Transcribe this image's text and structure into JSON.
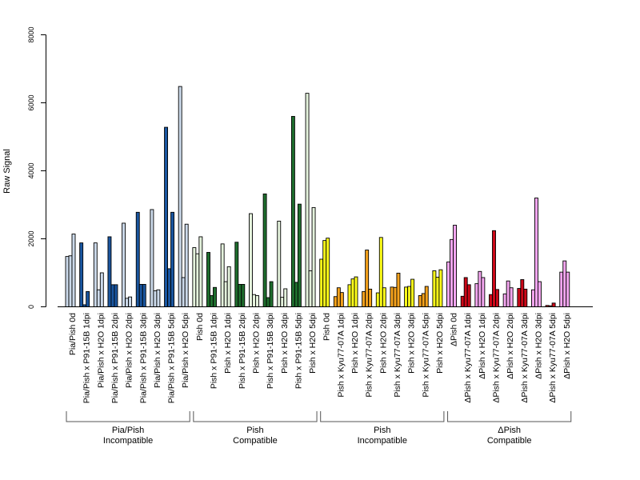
{
  "chart_data": {
    "type": "bar",
    "ylabel": "Raw Signal",
    "ylim": [
      0,
      8000
    ],
    "yticks": [
      "0",
      "2000",
      "4000",
      "6000",
      "8000"
    ],
    "grid": false,
    "legend": "none",
    "bars_per_condition": 4,
    "categories": [
      "Pia/Pish 0d",
      "Pia/Pish x P91-15B 1dpi",
      "Pia/Pish x H2O 1dpi",
      "Pia/Pish x P91-15B 2dpi",
      "Pia/Pish x H2O 2dpi",
      "Pia/Pish x P91-15B 3dpi",
      "Pia/Pish x H2O 3dpi",
      "Pia/Pish x P91-15B 5dpi",
      "Pia/Pish x H2O 5dpi",
      "Pish 0d",
      "Pish x P91-15B 1dpi",
      "Pish x H2O 1dpi",
      "Pish x P91-15B 2dpi",
      "Pish x H2O 2dpi",
      "Pish x P91-15B 3dpi",
      "Pish x H2O 3dpi",
      "Pish x P91-15B 5dpi",
      "Pish x H2O 5dpi",
      "Pish 0d",
      "Pish x Kyu77-07A 1dpi",
      "Pish x H2O 1dpi",
      "Pish x Kyu77-07A 2dpi",
      "Pish x H2O 2dpi",
      "Pish x Kyu77-07A 3dpi",
      "Pish x H2O 3dpi",
      "Pish x Kyu77-07A 5dpi",
      "Pish x H2O 5dpi",
      "ΔPish 0d",
      "ΔPish x Kyu77-07A 1dpi",
      "ΔPish x H2O 1dpi",
      "ΔPish x Kyu77-07A 2dpi",
      "ΔPish x H2O 2dpi",
      "ΔPish x Kyu77-07A 3dpi",
      "ΔPish x H2O 3dpi",
      "ΔPish x Kyu77-07A 5dpi",
      "ΔPish x H2O 5dpi"
    ],
    "values": [
      [
        1480,
        1500,
        2140,
        0
      ],
      [
        1880,
        60,
        450,
        0
      ],
      [
        1880,
        500,
        1000,
        0
      ],
      [
        2060,
        650,
        650,
        0
      ],
      [
        2460,
        250,
        290,
        0
      ],
      [
        2780,
        660,
        660,
        0
      ],
      [
        2860,
        470,
        500,
        0
      ],
      [
        5280,
        1120,
        2780,
        0
      ],
      [
        6480,
        860,
        2430,
        0
      ],
      [
        1740,
        1560,
        2060,
        0
      ],
      [
        1600,
        330,
        570,
        0
      ],
      [
        1850,
        740,
        1180,
        0
      ],
      [
        1900,
        660,
        660,
        0
      ],
      [
        2740,
        360,
        330,
        0
      ],
      [
        3320,
        270,
        740,
        0
      ],
      [
        2520,
        280,
        530,
        0
      ],
      [
        5600,
        720,
        3020,
        0
      ],
      [
        6280,
        1060,
        2920,
        0
      ],
      [
        1400,
        1950,
        2020,
        0
      ],
      [
        300,
        560,
        420,
        0
      ],
      [
        650,
        820,
        880,
        0
      ],
      [
        450,
        1670,
        520,
        0
      ],
      [
        410,
        2040,
        560,
        0
      ],
      [
        580,
        570,
        990,
        0
      ],
      [
        580,
        600,
        810,
        0
      ],
      [
        330,
        390,
        600,
        0
      ],
      [
        1060,
        870,
        1090,
        0
      ],
      [
        1320,
        1980,
        2400,
        0
      ],
      [
        310,
        860,
        650,
        0
      ],
      [
        680,
        1040,
        860,
        0
      ],
      [
        360,
        2240,
        510,
        0
      ],
      [
        380,
        760,
        560,
        0
      ],
      [
        540,
        800,
        520,
        0
      ],
      [
        500,
        3200,
        740,
        0
      ],
      [
        40,
        30,
        110,
        0
      ],
      [
        1020,
        1350,
        1020,
        0
      ]
    ],
    "groups": [
      {
        "line1": "Pia/Pish",
        "line2": "Incompatible",
        "start": 0,
        "end": 8
      },
      {
        "line1": "Pish",
        "line2": "Compatible",
        "start": 9,
        "end": 17
      },
      {
        "line1": "Pish",
        "line2": "Incompatible",
        "start": 18,
        "end": 26
      },
      {
        "line1": "ΔPish",
        "line2": "Compatible",
        "start": 27,
        "end": 35
      }
    ],
    "colors": {
      "blue_dark": "#1a56a0",
      "blue_light": "#ccdaeb",
      "green_dark": "#1f6e2e",
      "green_light": "#e4f2dc",
      "yellow": "#ffff1a",
      "orange": "#f5a21c",
      "red": "#cc0818",
      "pink": "#f4a6f0",
      "outline": "#000000"
    },
    "condition_colors": [
      "blue_light",
      "blue_dark",
      "blue_light",
      "blue_dark",
      "blue_light",
      "blue_dark",
      "blue_light",
      "blue_dark",
      "blue_light",
      "green_light",
      "green_dark",
      "green_light",
      "green_dark",
      "green_light",
      "green_dark",
      "green_light",
      "green_dark",
      "green_light",
      "yellow",
      "orange",
      "yellow",
      "orange",
      "yellow",
      "orange",
      "yellow",
      "orange",
      "yellow",
      "pink",
      "red",
      "pink",
      "red",
      "pink",
      "red",
      "pink",
      "red",
      "pink"
    ]
  }
}
